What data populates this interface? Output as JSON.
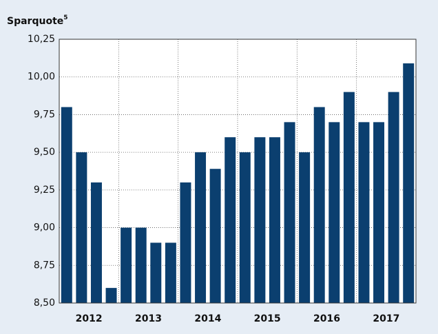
{
  "chart_data": {
    "type": "bar",
    "title": "Sparquote",
    "title_note": "5",
    "categories": [
      null,
      null,
      null,
      null,
      null,
      null,
      null,
      null,
      null,
      null,
      null,
      null,
      null,
      null,
      null,
      null,
      null,
      null,
      null,
      null,
      null,
      null,
      null,
      null
    ],
    "year_labels": [
      "2012",
      "2013",
      "2014",
      "2015",
      "2016",
      "2017"
    ],
    "values": [
      9.8,
      9.5,
      9.3,
      8.6,
      9.0,
      9.0,
      8.9,
      8.9,
      9.3,
      9.5,
      9.39,
      9.6,
      9.5,
      9.6,
      9.6,
      9.7,
      9.5,
      9.8,
      9.7,
      9.9,
      9.7,
      9.7,
      9.9,
      10.09
    ],
    "color": "#0b3f6f",
    "ylim": [
      8.5,
      10.25
    ],
    "yticks": [
      {
        "value": 8.5,
        "label": "8,50"
      },
      {
        "value": 8.75,
        "label": "8,75"
      },
      {
        "value": 9.0,
        "label": "9,00"
      },
      {
        "value": 9.25,
        "label": "9,25"
      },
      {
        "value": 9.5,
        "label": "9,50"
      },
      {
        "value": 9.75,
        "label": "9,75"
      },
      {
        "value": 10.0,
        "label": "10,00"
      },
      {
        "value": 10.25,
        "label": "10,25"
      }
    ],
    "grid": true
  }
}
